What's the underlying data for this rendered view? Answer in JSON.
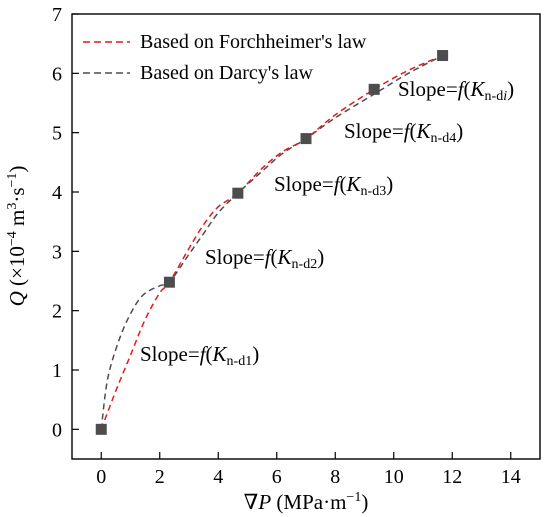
{
  "chart_data": {
    "type": "scatter",
    "xlabel": {
      "symbol": "∇",
      "var": "P",
      "unit": " (MPa·m",
      "sup": "−1",
      "close": ")"
    },
    "ylabel": {
      "var": "Q",
      "pre": " (×10",
      "exp1": "−4",
      "mid": " m",
      "exp2": "3",
      "dot": "·s",
      "exp3": "−1",
      "close": ")"
    },
    "xlim": [
      -1,
      15
    ],
    "ylim": [
      -0.5,
      7
    ],
    "xticks": [
      "0",
      "2",
      "4",
      "6",
      "8",
      "10",
      "12",
      "14"
    ],
    "yticks": [
      "0",
      "1",
      "2",
      "3",
      "4",
      "5",
      "6",
      "7"
    ],
    "points": {
      "x": [
        0,
        2.33,
        4.67,
        7.0,
        9.33,
        11.67
      ],
      "y": [
        0,
        2.48,
        3.98,
        4.9,
        5.73,
        6.3
      ],
      "color": "#4d4d4d"
    },
    "series": [
      {
        "name": "Based on Forchheimer's law",
        "color": "#e41a1c",
        "style": "dashed",
        "x": [
          0,
          0.5,
          1.0,
          1.5,
          2.0,
          2.33,
          3.0,
          3.5,
          4.0,
          4.67,
          5.5,
          6.2,
          7.0,
          8.0,
          9.33,
          10.5,
          11.67
        ],
        "y": [
          0,
          0.65,
          1.25,
          1.85,
          2.3,
          2.48,
          3.05,
          3.45,
          3.75,
          3.98,
          4.4,
          4.68,
          4.9,
          5.3,
          5.73,
          6.05,
          6.3
        ]
      },
      {
        "name": "Based on Darcy's law",
        "color": "#4d4d4d",
        "style": "dashed",
        "x": [
          0,
          0.2,
          0.5,
          0.9,
          1.4,
          2.0,
          2.33,
          3.0,
          3.5,
          4.0,
          4.67,
          5.5,
          6.2,
          7.0,
          8.0,
          9.33,
          10.5,
          11.67
        ],
        "y": [
          0,
          0.8,
          1.35,
          1.85,
          2.25,
          2.42,
          2.48,
          2.95,
          3.3,
          3.65,
          3.98,
          4.35,
          4.65,
          4.9,
          5.25,
          5.65,
          6.0,
          6.3
        ]
      }
    ],
    "annotations": [
      {
        "pre": "Slope=",
        "f": "f",
        "open": "(",
        "var": "K",
        "sub": "n-d1",
        "close": ")"
      },
      {
        "pre": "Slope=",
        "f": "f",
        "open": "(",
        "var": "K",
        "sub": "n-d2",
        "close": ")"
      },
      {
        "pre": "Slope=",
        "f": "f",
        "open": "(",
        "var": "K",
        "sub": "n-d3",
        "close": ")"
      },
      {
        "pre": "Slope=",
        "f": "f",
        "open": "(",
        "var": "K",
        "sub": "n-d4",
        "close": ")"
      },
      {
        "pre": "Slope=",
        "f": "f",
        "open": "(",
        "var": "K",
        "sub": "n-d",
        "subi": "i",
        "close": ")"
      }
    ],
    "legend_position": "top-left"
  }
}
